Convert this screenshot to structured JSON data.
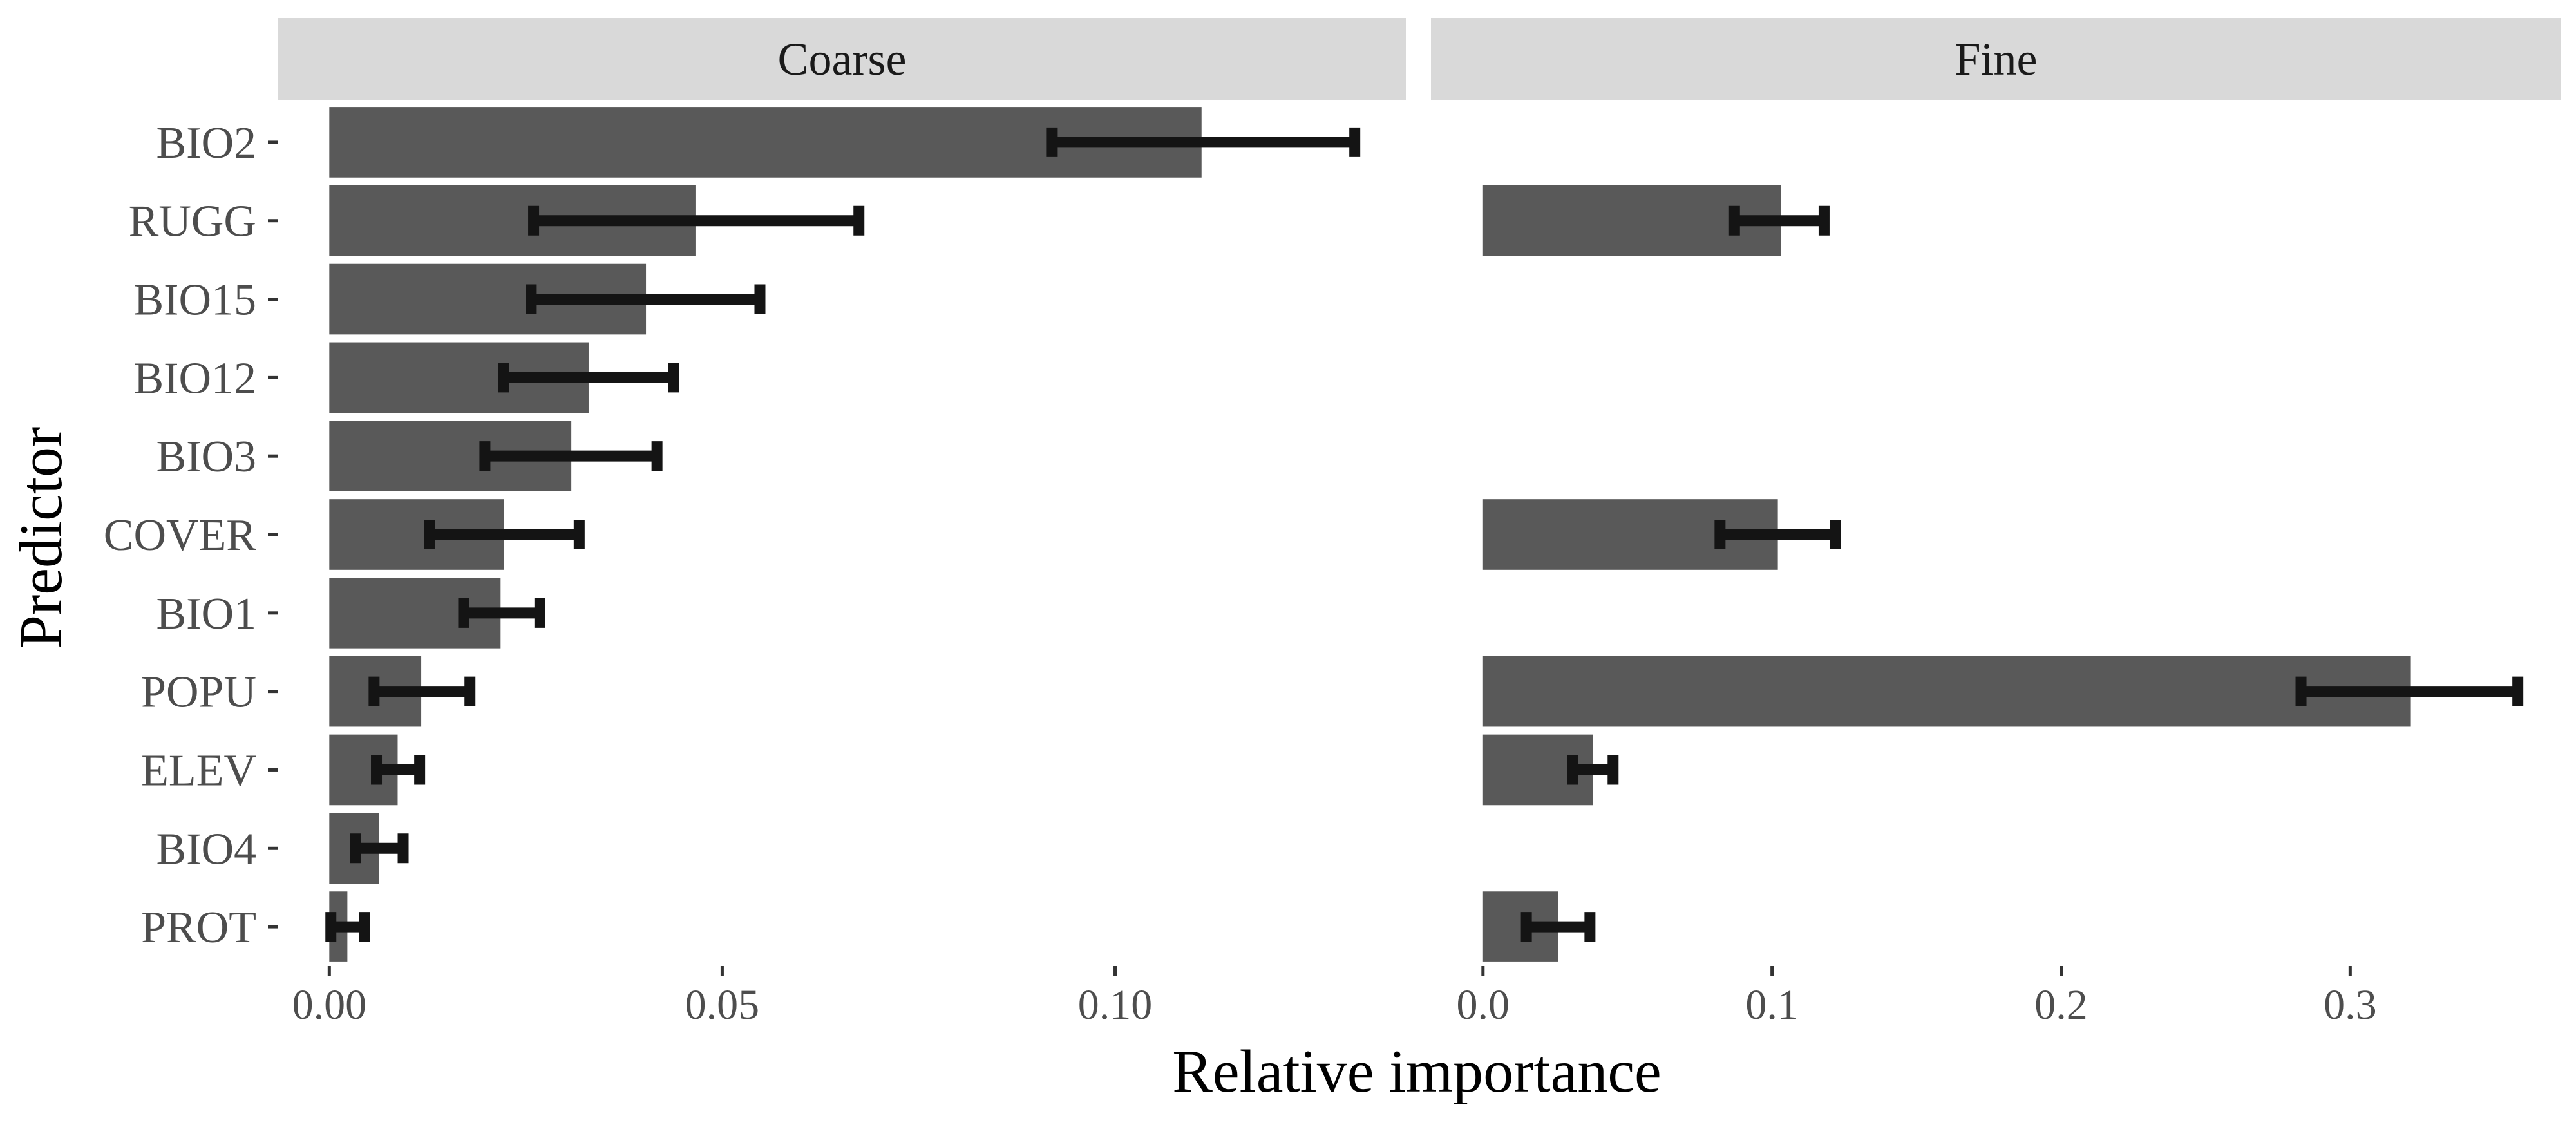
{
  "chart_data": {
    "type": "bar",
    "orientation": "horizontal",
    "xlabel": "Relative importance",
    "ylabel": "Predictor",
    "categories": [
      "BIO2",
      "RUGG",
      "BIO15",
      "BIO12",
      "BIO3",
      "COVER",
      "BIO1",
      "POPU",
      "ELEV",
      "BIO4",
      "PROT"
    ],
    "colors": {
      "bar": "#595959",
      "errorbar": "#141414",
      "strip": "#d9d9d9"
    },
    "panels": [
      {
        "name": "Coarse",
        "xlim": [
          -0.0065,
          0.137
        ],
        "xticks": [
          0.0,
          0.05,
          0.1
        ],
        "xtick_labels": [
          "0.00",
          "0.05",
          "0.10"
        ],
        "bars": [
          {
            "category": "BIO2",
            "value": 0.111,
            "err_low": 0.092,
            "err_high": 0.1305
          },
          {
            "category": "RUGG",
            "value": 0.0466,
            "err_low": 0.026,
            "err_high": 0.0674
          },
          {
            "category": "BIO15",
            "value": 0.0403,
            "err_low": 0.0257,
            "err_high": 0.0548
          },
          {
            "category": "BIO12",
            "value": 0.033,
            "err_low": 0.0222,
            "err_high": 0.0438
          },
          {
            "category": "BIO3",
            "value": 0.0308,
            "err_low": 0.0198,
            "err_high": 0.0417
          },
          {
            "category": "COVER",
            "value": 0.0222,
            "err_low": 0.0128,
            "err_high": 0.0318
          },
          {
            "category": "BIO1",
            "value": 0.0218,
            "err_low": 0.0171,
            "err_high": 0.0268
          },
          {
            "category": "POPU",
            "value": 0.0117,
            "err_low": 0.0057,
            "err_high": 0.0179
          },
          {
            "category": "ELEV",
            "value": 0.0087,
            "err_low": 0.006,
            "err_high": 0.0115
          },
          {
            "category": "BIO4",
            "value": 0.0063,
            "err_low": 0.0033,
            "err_high": 0.0094
          },
          {
            "category": "PROT",
            "value": 0.0023,
            "err_low": 0.0002,
            "err_high": 0.0045
          }
        ]
      },
      {
        "name": "Fine",
        "xlim": [
          -0.018,
          0.373
        ],
        "xticks": [
          0.0,
          0.1,
          0.2,
          0.3
        ],
        "xtick_labels": [
          "0.0",
          "0.1",
          "0.2",
          "0.3"
        ],
        "bars": [
          {
            "category": "RUGG",
            "value": 0.103,
            "err_low": 0.087,
            "err_high": 0.118
          },
          {
            "category": "COVER",
            "value": 0.102,
            "err_low": 0.082,
            "err_high": 0.122
          },
          {
            "category": "POPU",
            "value": 0.321,
            "err_low": 0.283,
            "err_high": 0.358
          },
          {
            "category": "ELEV",
            "value": 0.038,
            "err_low": 0.031,
            "err_high": 0.045
          },
          {
            "category": "PROT",
            "value": 0.026,
            "err_low": 0.015,
            "err_high": 0.037
          }
        ]
      }
    ]
  }
}
